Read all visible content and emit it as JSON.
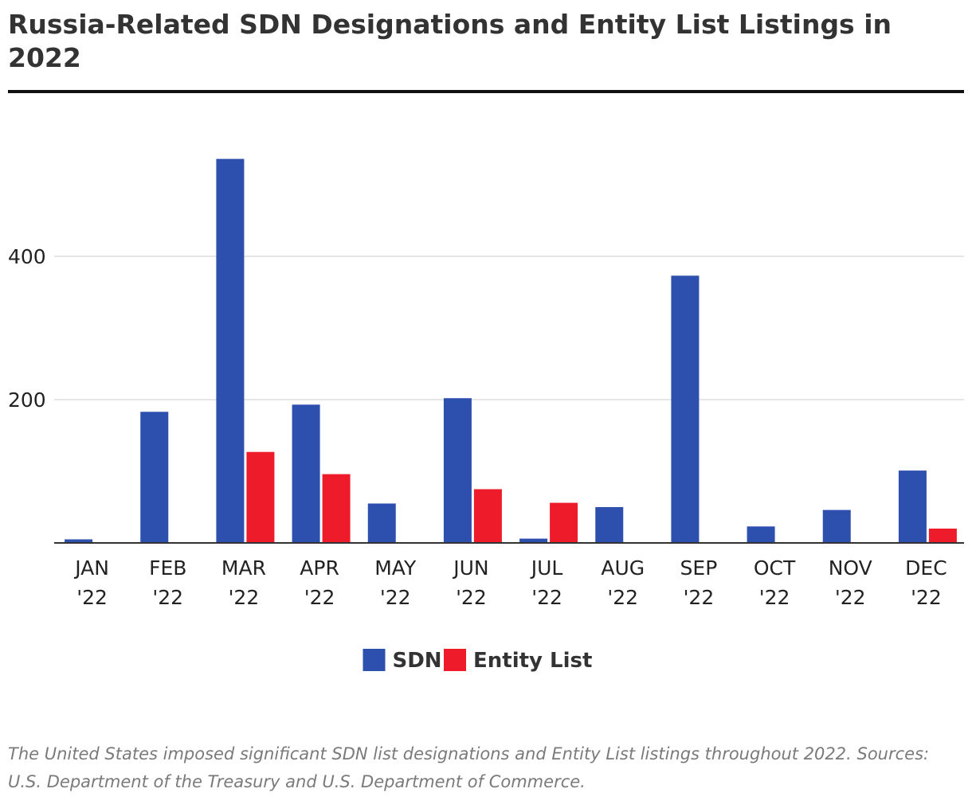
{
  "title": "Russia-Related SDN Designations and Entity List Listings in 2022",
  "caption": "The United States imposed significant SDN list designations and Entity List listings throughout 2022. Sources: U.S. Department of the Treasury and U.S. Department of Commerce.",
  "chart_data": {
    "type": "bar",
    "title": "Russia-Related SDN Designations and Entity List Listings in 2022",
    "categories": [
      [
        "JAN",
        "'22"
      ],
      [
        "FEB",
        "'22"
      ],
      [
        "MAR",
        "'22"
      ],
      [
        "APR",
        "'22"
      ],
      [
        "MAY",
        "'22"
      ],
      [
        "JUN",
        "'22"
      ],
      [
        "JUL",
        "'22"
      ],
      [
        "AUG",
        "'22"
      ],
      [
        "SEP",
        "'22"
      ],
      [
        "OCT",
        "'22"
      ],
      [
        "NOV",
        "'22"
      ],
      [
        "DEC",
        "'22"
      ]
    ],
    "series": [
      {
        "name": "SDN",
        "color": "#2d4fae",
        "values": [
          5,
          183,
          536,
          193,
          55,
          202,
          6,
          50,
          373,
          23,
          46,
          101
        ]
      },
      {
        "name": "Entity List",
        "color": "#ee1c2b",
        "values": [
          0,
          0,
          127,
          96,
          0,
          75,
          56,
          0,
          0,
          0,
          0,
          20
        ]
      }
    ],
    "xlabel": "",
    "ylabel": "",
    "yticks": [
      200,
      400
    ],
    "ylim": [
      0,
      560
    ],
    "grid": true,
    "legend": "bottom-center"
  }
}
